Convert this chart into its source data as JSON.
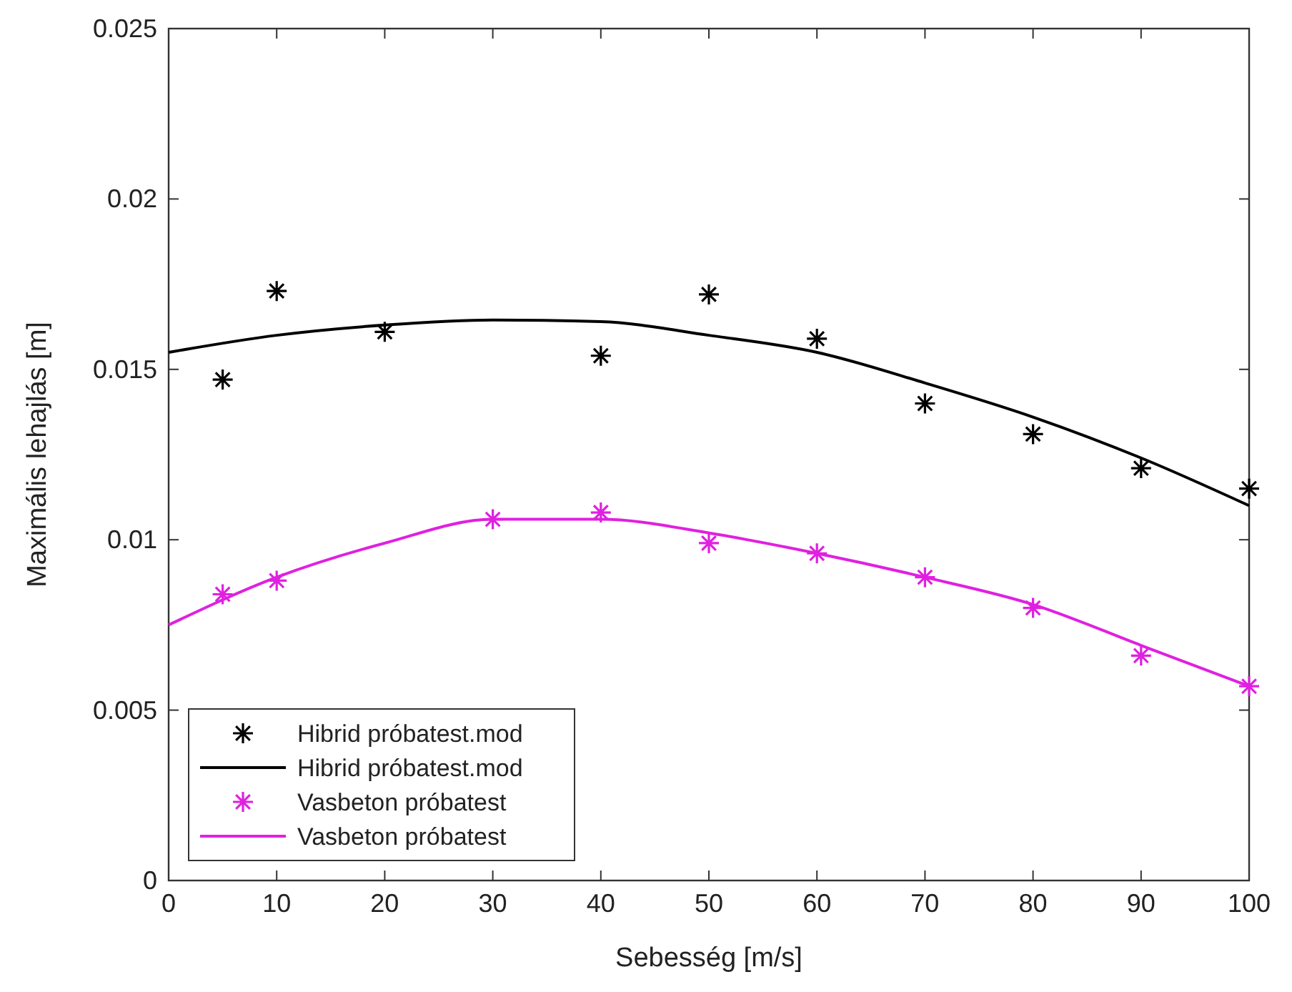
{
  "chart_data": {
    "type": "scatter",
    "xlabel": "Sebesség [m/s]",
    "ylabel": "Maximális lehajlás [m]",
    "xlim": [
      0,
      100
    ],
    "xticks": [
      0,
      10,
      20,
      30,
      40,
      50,
      60,
      70,
      80,
      90,
      100
    ],
    "ylim": [
      0,
      0.025
    ],
    "yticks": [
      0,
      0.005,
      0.01,
      0.015,
      0.02,
      0.025
    ],
    "grid": false,
    "legend": "bottom left",
    "series": [
      {
        "name": "Hibrid próbatest.mod",
        "marker": "cross",
        "color": "#000000",
        "x": [
          5,
          10,
          20,
          40,
          50,
          60,
          70,
          80,
          90,
          100
        ],
        "values": [
          0.0147,
          0.0173,
          0.0161,
          0.0154,
          0.0172,
          0.0159,
          0.014,
          0.0131,
          0.0121,
          0.0115
        ]
      },
      {
        "name": "Hibrid próbatest.mod",
        "type": "line",
        "color": "#000000",
        "x": [
          0,
          10,
          20,
          30,
          40,
          50,
          60,
          70,
          80,
          90,
          100
        ],
        "values": [
          0.0155,
          0.016,
          0.0163,
          0.01645,
          0.0164,
          0.016,
          0.0155,
          0.0146,
          0.0136,
          0.0124,
          0.011
        ]
      },
      {
        "name": "Vasbeton próbatest",
        "marker": "cross",
        "color": "#e020e0",
        "x": [
          5,
          10,
          30,
          40,
          50,
          60,
          70,
          80,
          90,
          100
        ],
        "values": [
          0.0084,
          0.0088,
          0.0106,
          0.0108,
          0.0099,
          0.0096,
          0.0089,
          0.008,
          0.0066,
          0.0057
        ]
      },
      {
        "name": "Vasbeton próbatest",
        "type": "line",
        "color": "#e020e0",
        "x": [
          0,
          10,
          20,
          30,
          40,
          50,
          60,
          70,
          80,
          90,
          100
        ],
        "values": [
          0.0075,
          0.0089,
          0.0099,
          0.0106,
          0.0106,
          0.0102,
          0.0096,
          0.0089,
          0.0081,
          0.0069,
          0.0057
        ]
      }
    ]
  }
}
